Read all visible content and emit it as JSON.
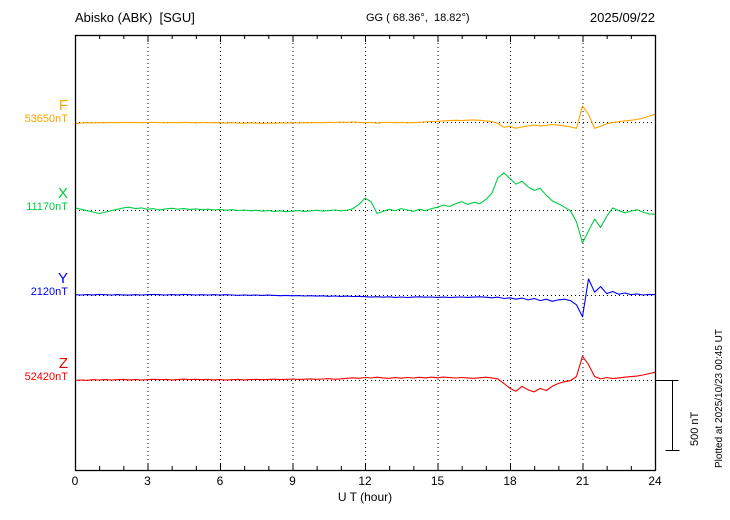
{
  "header": {
    "station": "Abisko (ABK)  [SGU]",
    "coords": "GG ( 68.36°,  18.82°)",
    "date": "2025/09/22"
  },
  "side": {
    "plotted_note": "Plotted at 2025/10/23 00:45 UT",
    "scale_label": "500 nT"
  },
  "axis": {
    "xlabel": "U T (hour)",
    "tick_labels": [
      "0",
      "3",
      "6",
      "9",
      "12",
      "15",
      "18",
      "21",
      "24"
    ]
  },
  "chart_data": {
    "type": "line",
    "title": "Abisko (ABK) [SGU] magnetogram 2025/09/22",
    "xlabel": "U T (hour)",
    "x_range": [
      0,
      24
    ],
    "x_step_hours": 0.25,
    "x_ticks": [
      0,
      3,
      6,
      9,
      12,
      15,
      18,
      21,
      24
    ],
    "scale_bar_nT": 500,
    "grid": "dotted",
    "series": [
      {
        "name": "F",
        "color": "#FFA500",
        "base_nT": 53650,
        "base_label": "53650nT",
        "offsets_nT": [
          -12,
          -8,
          -5,
          -6,
          -4,
          -6,
          -3,
          -5,
          -2,
          -4,
          -3,
          -5,
          -4,
          -2,
          -4,
          -6,
          -3,
          -5,
          -2,
          -4,
          -6,
          -3,
          -5,
          -4,
          -6,
          -8,
          -5,
          -7,
          -9,
          -6,
          -8,
          -10,
          -7,
          -9,
          -6,
          -8,
          -5,
          -7,
          -4,
          -6,
          -3,
          -5,
          -2,
          -4,
          -1,
          -3,
          0,
          -2,
          -6,
          -3,
          -8,
          -4,
          -2,
          -5,
          -3,
          -6,
          -4,
          -2,
          0,
          3,
          5,
          8,
          10,
          12,
          10,
          13,
          15,
          12,
          8,
          3,
          -10,
          -38,
          -30,
          -45,
          -35,
          -28,
          -22,
          -28,
          -24,
          -18,
          -22,
          -28,
          -35,
          -45,
          115,
          55,
          -45,
          -30,
          -12,
          -4,
          2,
          8,
          12,
          18,
          28,
          42,
          55
        ]
      },
      {
        "name": "X",
        "color": "#00CC44",
        "base_nT": 11170,
        "base_label": "11170nT",
        "offsets_nT": [
          15,
          5,
          -5,
          -15,
          -25,
          -15,
          -5,
          5,
          15,
          20,
          10,
          15,
          5,
          10,
          0,
          8,
          12,
          6,
          10,
          4,
          8,
          2,
          6,
          0,
          4,
          -2,
          2,
          -4,
          0,
          -6,
          -2,
          -8,
          -4,
          -10,
          -6,
          -12,
          -8,
          -4,
          -10,
          -6,
          -2,
          -8,
          -4,
          0,
          -6,
          -2,
          10,
          40,
          85,
          60,
          -25,
          -10,
          5,
          -5,
          10,
          0,
          -10,
          5,
          -5,
          10,
          20,
          35,
          25,
          45,
          60,
          40,
          55,
          45,
          75,
          120,
          230,
          265,
          225,
          185,
          205,
          165,
          140,
          155,
          105,
          65,
          45,
          20,
          -5,
          -85,
          -235,
          -150,
          -65,
          -125,
          -45,
          15,
          -5,
          -20,
          -8,
          2,
          -15,
          -28,
          -30
        ]
      },
      {
        "name": "Y",
        "color": "#0000EE",
        "base_nT": 2120,
        "base_label": "2120nT",
        "offsets_nT": [
          2,
          0,
          3,
          1,
          4,
          2,
          0,
          3,
          1,
          -1,
          2,
          0,
          2,
          4,
          2,
          0,
          3,
          1,
          4,
          2,
          0,
          2,
          0,
          2,
          0,
          2,
          0,
          -2,
          0,
          -2,
          0,
          -3,
          -1,
          -3,
          -5,
          -3,
          -6,
          -4,
          -7,
          -5,
          -8,
          -6,
          -9,
          -7,
          -10,
          -8,
          -11,
          -9,
          -12,
          -15,
          -12,
          -16,
          -13,
          -17,
          -14,
          -18,
          -15,
          -13,
          -16,
          -14,
          -17,
          -15,
          -18,
          -16,
          -14,
          -17,
          -15,
          -13,
          -16,
          -20,
          -15,
          -25,
          -20,
          -30,
          -22,
          -35,
          -25,
          -40,
          -30,
          -45,
          -35,
          -30,
          -40,
          -70,
          -155,
          115,
          20,
          60,
          10,
          25,
          5,
          15,
          2,
          8,
          0,
          4,
          2
        ]
      },
      {
        "name": "Z",
        "color": "#EE0000",
        "base_nT": 52420,
        "base_label": "52420nT",
        "offsets_nT": [
          -3,
          0,
          -2,
          2,
          0,
          3,
          0,
          2,
          4,
          1,
          3,
          0,
          2,
          5,
          2,
          4,
          1,
          3,
          6,
          3,
          5,
          2,
          4,
          1,
          3,
          0,
          2,
          4,
          1,
          3,
          5,
          2,
          4,
          6,
          3,
          5,
          7,
          4,
          6,
          8,
          5,
          7,
          9,
          6,
          8,
          12,
          16,
          12,
          18,
          14,
          20,
          15,
          12,
          17,
          13,
          18,
          14,
          19,
          15,
          20,
          16,
          21,
          17,
          14,
          18,
          15,
          12,
          16,
          20,
          15,
          8,
          -25,
          -60,
          -80,
          -45,
          -70,
          -85,
          -60,
          -75,
          -45,
          -25,
          -12,
          -5,
          25,
          170,
          110,
          25,
          8,
          18,
          10,
          15,
          20,
          24,
          28,
          36,
          46,
          55
        ]
      }
    ]
  }
}
